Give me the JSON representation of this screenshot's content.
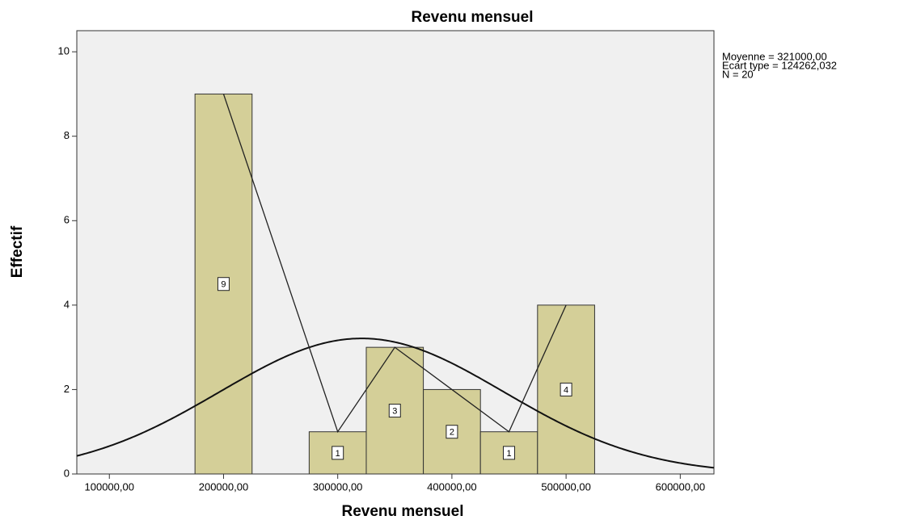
{
  "chart_data": {
    "type": "histogram",
    "title": "Revenu mensuel",
    "x_label": "Revenu mensuel",
    "y_label": "Effectif",
    "stats": [
      "Moyenne = 321000,00",
      "Ecart type = 124262,032",
      "N = 20"
    ],
    "bins": [
      175000,
      225000,
      275000,
      325000,
      375000,
      425000,
      475000,
      525000
    ],
    "counts": [
      9,
      0,
      1,
      3,
      2,
      1,
      4
    ],
    "color": "#d4cf98",
    "polygon": {
      "x": [
        200000,
        300000,
        350000,
        400000,
        450000,
        500000
      ],
      "values": [
        9,
        1,
        3,
        2,
        1,
        4
      ]
    },
    "curve": {
      "mean": 321000,
      "sd": 124262.032,
      "n": 20
    },
    "xlim": [
      71500,
      629500
    ],
    "ylim": [
      0,
      10.5
    ],
    "xticks": [
      {
        "value": 100000,
        "label": "100000,00"
      },
      {
        "value": 200000,
        "label": "200000,00"
      },
      {
        "value": 300000,
        "label": "300000,00"
      },
      {
        "value": 400000,
        "label": "400000,00"
      },
      {
        "value": 500000,
        "label": "500000,00"
      },
      {
        "value": 600000,
        "label": "600000,00"
      }
    ],
    "yticks": [
      0,
      2,
      4,
      6,
      8,
      10
    ]
  }
}
